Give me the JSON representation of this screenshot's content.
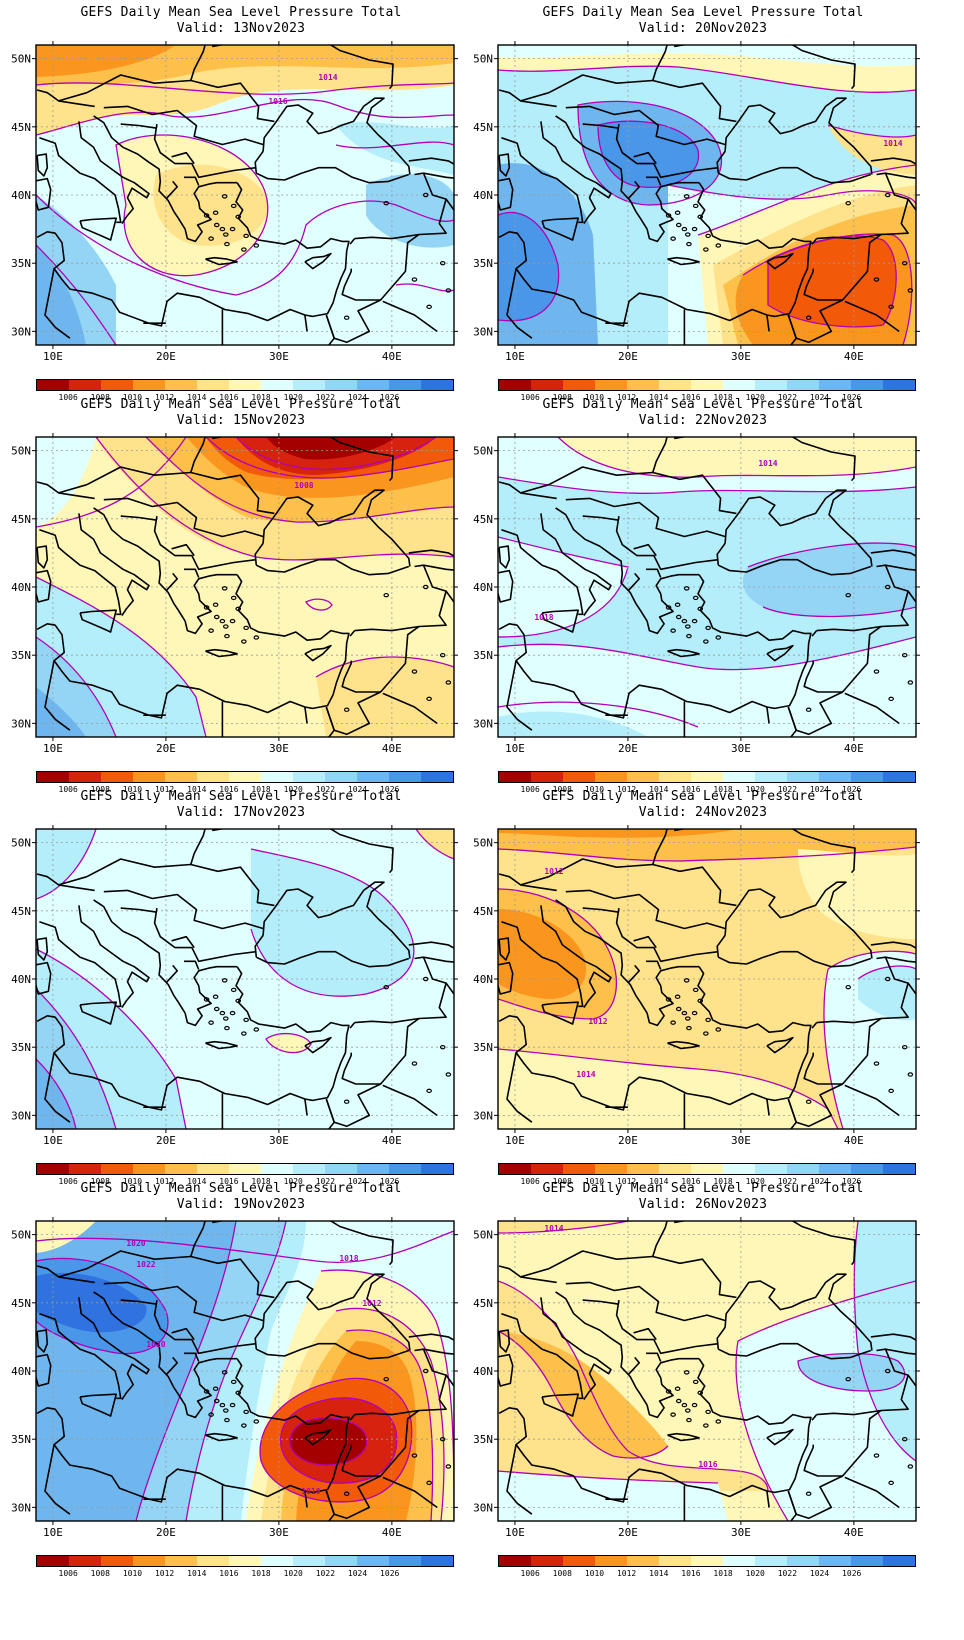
{
  "panels": [
    {
      "title": "GEFS Daily Mean Sea Level Pressure Total",
      "valid": "Valid: 13Nov2023",
      "scheme": "a",
      "labels": [
        "1014",
        "1016"
      ]
    },
    {
      "title": "GEFS Daily Mean Sea Level Pressure Total",
      "valid": "Valid: 20Nov2023",
      "scheme": "e",
      "labels": [
        "1014"
      ]
    },
    {
      "title": "GEFS Daily Mean Sea Level Pressure Total",
      "valid": "Valid: 15Nov2023",
      "scheme": "b",
      "labels": [
        "1008"
      ]
    },
    {
      "title": "GEFS Daily Mean Sea Level Pressure Total",
      "valid": "Valid: 22Nov2023",
      "scheme": "f",
      "labels": [
        "1014",
        "1018"
      ]
    },
    {
      "title": "GEFS Daily Mean Sea Level Pressure Total",
      "valid": "Valid: 17Nov2023",
      "scheme": "c",
      "labels": []
    },
    {
      "title": "GEFS Daily Mean Sea Level Pressure Total",
      "valid": "Valid: 24Nov2023",
      "scheme": "g",
      "labels": [
        "1012",
        "1012",
        "1014"
      ]
    },
    {
      "title": "GEFS Daily Mean Sea Level Pressure Total",
      "valid": "Valid: 19Nov2023",
      "scheme": "d",
      "labels": [
        "1020",
        "1022",
        "1018",
        "1012",
        "1020",
        "1010"
      ]
    },
    {
      "title": "GEFS Daily Mean Sea Level Pressure Total",
      "valid": "Valid: 26Nov2023",
      "scheme": "h",
      "labels": [
        "1014",
        "1016"
      ]
    }
  ],
  "axes": {
    "lat_labels": [
      "50N",
      "45N",
      "40N",
      "35N",
      "30N"
    ],
    "lon_labels": [
      "10E",
      "20E",
      "30E",
      "40E"
    ]
  },
  "colorbar": {
    "colors": [
      "#a50000",
      "#d7220f",
      "#f25a0a",
      "#fa961e",
      "#fdc04b",
      "#ffe38c",
      "#fff7b8",
      "#e0ffff",
      "#b4eefa",
      "#94d5f5",
      "#6fb6ee",
      "#4a96e8",
      "#2f72e0"
    ],
    "labels": [
      "1006",
      "1008",
      "1010",
      "1012",
      "1014",
      "1016",
      "1018",
      "1020",
      "1022",
      "1024",
      "1026"
    ]
  },
  "colors": {
    "contour": "#b100b8",
    "coast": "#000000",
    "grid": "#9a9a9a"
  }
}
